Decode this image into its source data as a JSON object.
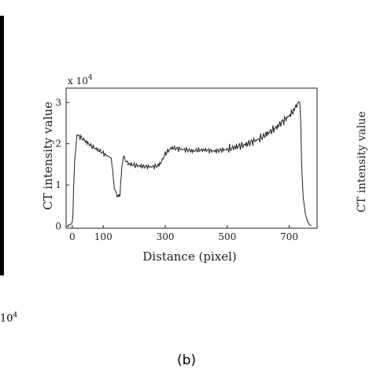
{
  "chart_data": {
    "type": "line",
    "title": "",
    "xlabel": "Distance (pixel)",
    "ylabel": "CT intensity value",
    "y_multiplier": "x 10",
    "y_multiplier_exp": "4",
    "xlim": [
      -20,
      790
    ],
    "ylim": [
      -0.05,
      3.35
    ],
    "xticks": [
      0,
      100,
      300,
      500,
      700
    ],
    "xtick_labels": [
      "0",
      "100",
      "300",
      "500",
      "700"
    ],
    "yticks": [
      0,
      1,
      2,
      3
    ],
    "ytick_labels": [
      "0",
      "1",
      "2",
      "3"
    ],
    "grid": false,
    "legend": "none",
    "series": [
      {
        "color": "#222222",
        "x": [
          -15,
          -5,
          0,
          2,
          4,
          8,
          15,
          30,
          60,
          90,
          110,
          120,
          126,
          130,
          136,
          142,
          146,
          150,
          154,
          158,
          162,
          166,
          170,
          180,
          200,
          230,
          255,
          275,
          282,
          290,
          300,
          320,
          340,
          370,
          390,
          400,
          430,
          460,
          480,
          500,
          520,
          540,
          560,
          580,
          600,
          620,
          640,
          660,
          680,
          700,
          714,
          724,
          730,
          734,
          737,
          740,
          745,
          752,
          760,
          766,
          772
        ],
        "y": [
          0.02,
          0.04,
          0.1,
          0.3,
          0.9,
          1.6,
          2.22,
          2.14,
          1.95,
          1.82,
          1.72,
          1.68,
          1.62,
          1.35,
          0.95,
          0.78,
          0.74,
          0.7,
          0.8,
          1.22,
          1.6,
          1.7,
          1.62,
          1.52,
          1.48,
          1.45,
          1.44,
          1.46,
          1.5,
          1.6,
          1.76,
          1.9,
          1.88,
          1.85,
          1.82,
          1.84,
          1.85,
          1.82,
          1.85,
          1.86,
          1.9,
          1.95,
          1.98,
          2.05,
          2.1,
          2.2,
          2.3,
          2.4,
          2.55,
          2.68,
          2.8,
          2.95,
          3.02,
          3.0,
          2.6,
          1.5,
          0.7,
          0.3,
          0.1,
          0.03,
          0.01
        ]
      }
    ]
  },
  "decor": {
    "stray_x104_base": "10",
    "stray_x104_exp": "4",
    "stray_ylabel": "CT intensity value",
    "caption": "(b)"
  }
}
